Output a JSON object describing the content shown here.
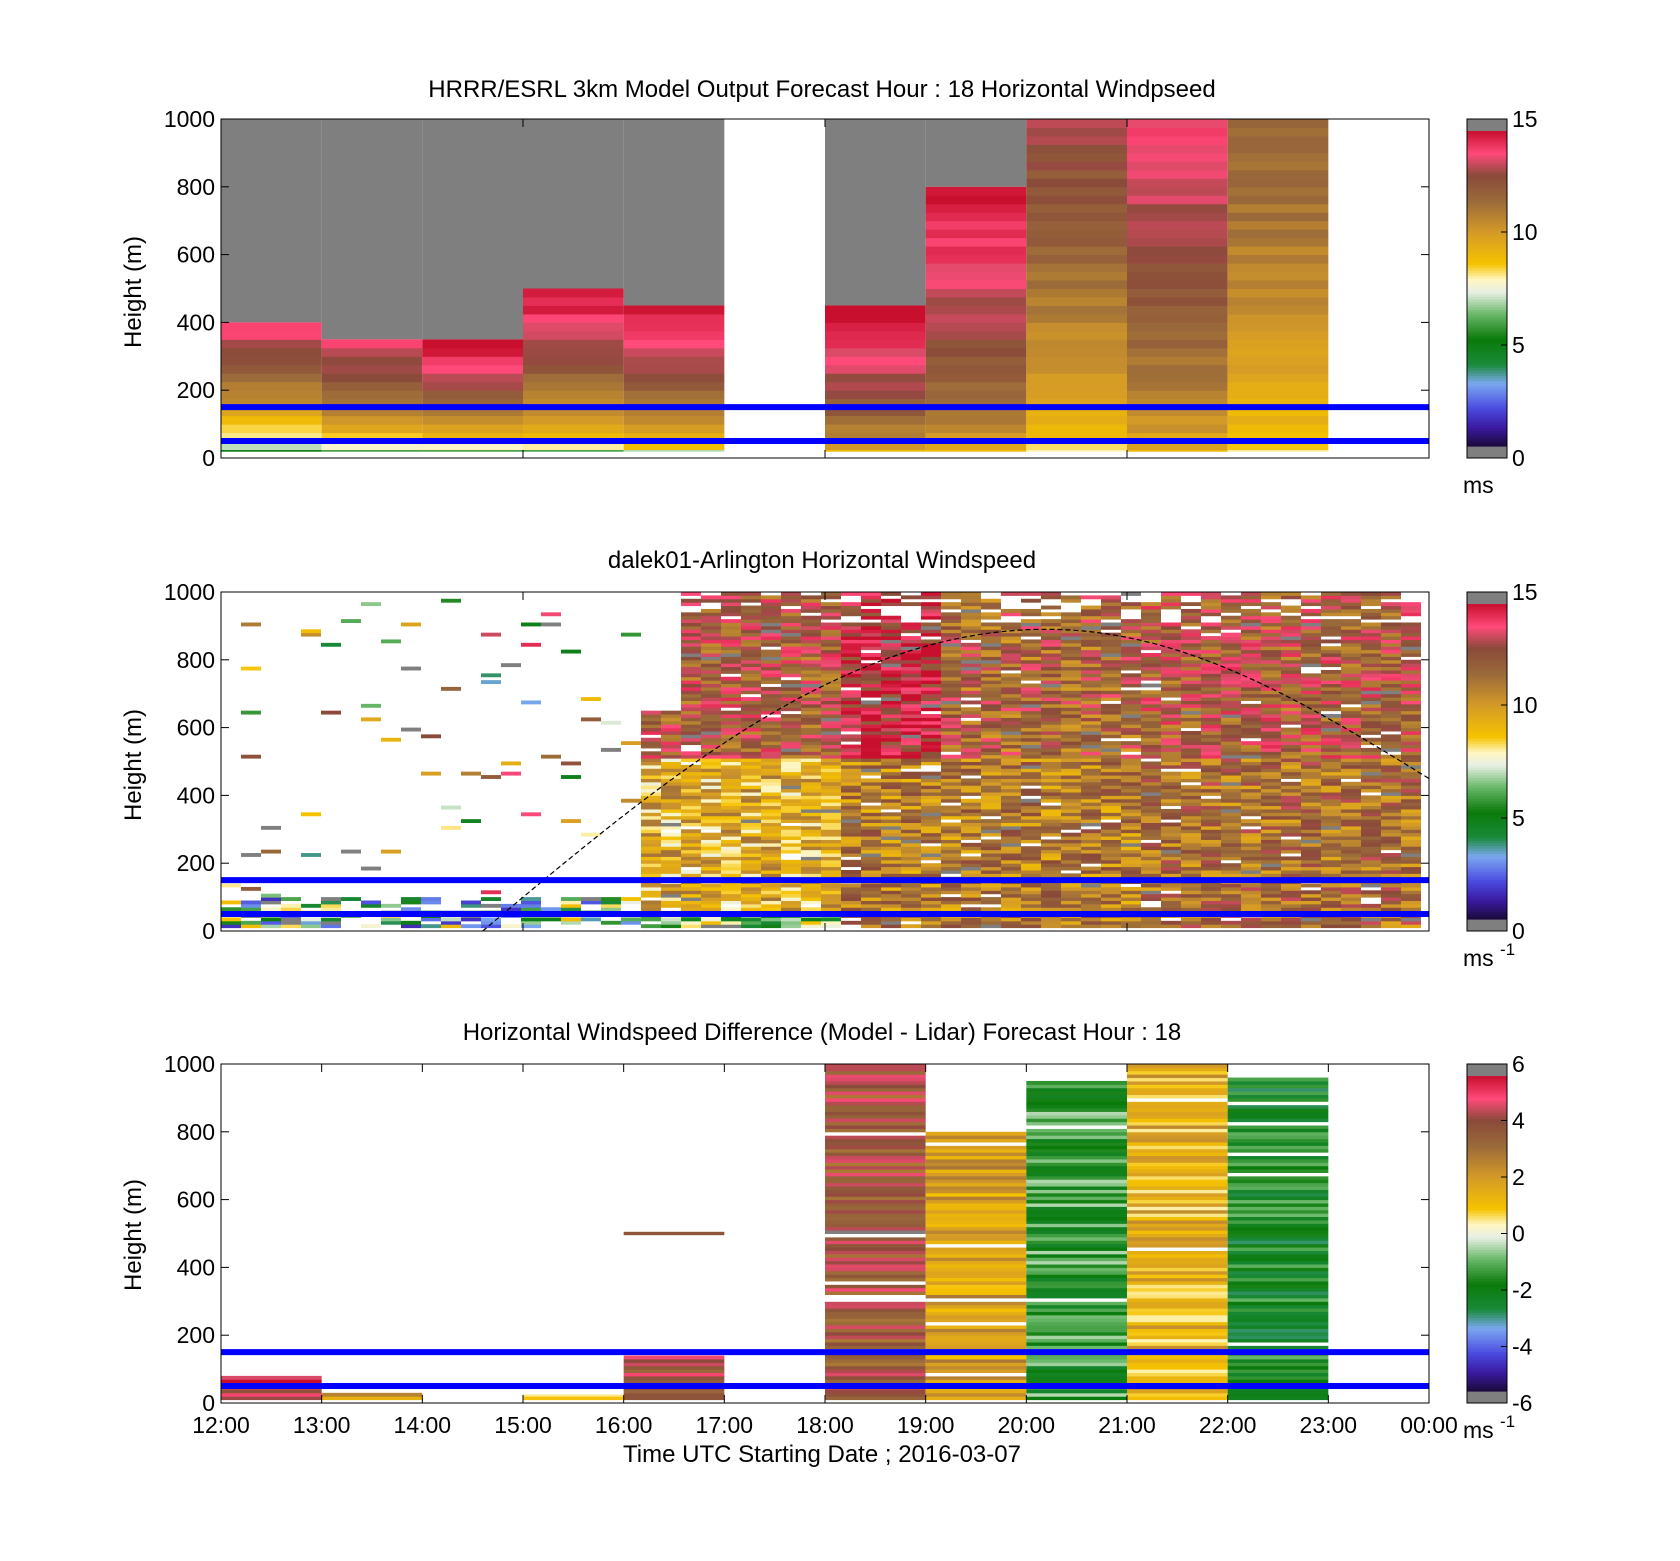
{
  "chart_data": [
    {
      "type": "heatmap",
      "title": "HRRR/ESRL 3km Model Output   Forecast Hour : 18 Horizontal Windpseed",
      "ylabel": "Height (m)",
      "ylim": [
        0,
        1000
      ],
      "yticks": [
        "0",
        "200",
        "400",
        "600",
        "800",
        "1000"
      ],
      "xlim_hours": [
        12,
        24
      ],
      "colorbar": {
        "min": 0,
        "max": 15,
        "ticks": [
          "0",
          "5",
          "10",
          "15"
        ],
        "unit": "ms"
      },
      "reference_lines_m": [
        50,
        150
      ],
      "columns": [
        {
          "start": 12,
          "end": 13,
          "top": 400,
          "low_value": 5,
          "top_value": 14
        },
        {
          "start": 13,
          "end": 14,
          "top": 350,
          "low_value": 6,
          "top_value": 14
        },
        {
          "start": 14,
          "end": 15,
          "top": 350,
          "low_value": 6,
          "top_value": 15
        },
        {
          "start": 15,
          "end": 16,
          "top": 500,
          "low_value": 6,
          "top_value": 15
        },
        {
          "start": 16,
          "end": 17,
          "top": 450,
          "low_value": 7,
          "top_value": 15
        },
        {
          "start": 18,
          "end": 19,
          "top": 450,
          "low_value": 9,
          "top_value": 15
        },
        {
          "start": 19,
          "end": 20,
          "top": 800,
          "low_value": 9,
          "top_value": 15
        },
        {
          "start": 20,
          "end": 21,
          "top": 1000,
          "low_value": 8,
          "top_value": 13
        },
        {
          "start": 21,
          "end": 22,
          "top": 1000,
          "low_value": 9,
          "top_value": 14
        },
        {
          "start": 22,
          "end": 23,
          "top": 1000,
          "low_value": 8,
          "top_value": 12
        }
      ]
    },
    {
      "type": "heatmap",
      "title": "dalek01-Arlington  Horizontal Windspeed",
      "ylabel": "Height (m)",
      "ylim": [
        0,
        1000
      ],
      "yticks": [
        "0",
        "200",
        "400",
        "600",
        "800",
        "1000"
      ],
      "xlim_hours": [
        12,
        24
      ],
      "colorbar": {
        "min": 0,
        "max": 15,
        "ticks": [
          "0",
          "5",
          "10",
          "15"
        ],
        "unit": "ms",
        "unit_exp": "-1"
      },
      "reference_lines_m": [
        50,
        150
      ],
      "boundary_layer_curve": {
        "start_hour": 14.6,
        "peak_hour": 20.2,
        "peak_height": 890,
        "end_hour": 24,
        "end_height": 450
      }
    },
    {
      "type": "heatmap",
      "title": "Horizontal Windspeed Difference (Model - Lidar) Forecast Hour : 18",
      "ylabel": "Height (m)",
      "xlabel": "Time UTC  Starting Date ; 2016-03-07",
      "ylim": [
        0,
        1000
      ],
      "yticks": [
        "0",
        "200",
        "400",
        "600",
        "800",
        "1000"
      ],
      "xticks": [
        "12:00",
        "13:00",
        "14:00",
        "15:00",
        "16:00",
        "17:00",
        "18:00",
        "19:00",
        "20:00",
        "21:00",
        "22:00",
        "23:00",
        "00:00"
      ],
      "xlim_hours": [
        12,
        24
      ],
      "colorbar": {
        "min": -6,
        "max": 6,
        "ticks": [
          "-6",
          "-4",
          "-2",
          "0",
          "2",
          "4",
          "6"
        ],
        "unit": "ms",
        "unit_exp": "-1"
      },
      "reference_lines_m": [
        50,
        150
      ],
      "columns": [
        {
          "start": 12,
          "end": 13,
          "top": 80,
          "value": 5
        },
        {
          "start": 13,
          "end": 14,
          "top": 30,
          "value": 2
        },
        {
          "start": 15,
          "end": 16,
          "top": 25,
          "value": 1.5
        },
        {
          "start": 16,
          "end": 17,
          "top": 140,
          "value": 4.5
        },
        {
          "start": 18,
          "end": 19,
          "top": 1000,
          "value": 4
        },
        {
          "start": 19,
          "end": 20,
          "top": 800,
          "value": 2
        },
        {
          "start": 20,
          "end": 21,
          "top": 950,
          "value": -1.5
        },
        {
          "start": 21,
          "end": 22,
          "top": 1000,
          "value": 1.5
        },
        {
          "start": 22,
          "end": 23,
          "top": 960,
          "value": -2
        }
      ],
      "isolated_segment": {
        "start": 16,
        "end": 17,
        "height": 500,
        "value": 4
      }
    }
  ]
}
